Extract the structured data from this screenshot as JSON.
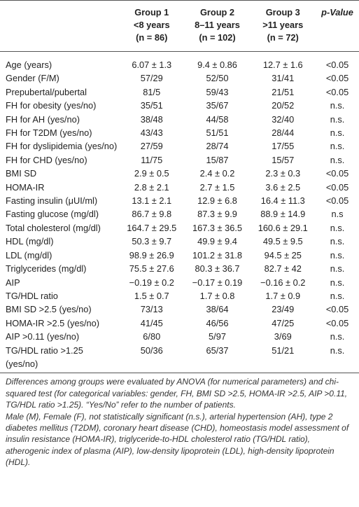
{
  "table": {
    "header": [
      {
        "lines": [
          "",
          "",
          " "
        ]
      },
      {
        "lines": [
          "Group 1",
          "<8 years",
          "(n = 86)"
        ]
      },
      {
        "lines": [
          "Group 2",
          "8–11 years",
          "(n = 102)"
        ]
      },
      {
        "lines": [
          "Group 3",
          ">11 years",
          "(n = 72)"
        ]
      },
      {
        "lines": [
          "p-Value"
        ]
      }
    ],
    "rows": [
      [
        "Age (years)",
        "6.07 ± 1.3",
        "9.4 ± 0.86",
        "12.7 ± 1.6",
        "<0.05"
      ],
      [
        "Gender (F/M)",
        "57/29",
        "52/50",
        "31/41",
        "<0.05"
      ],
      [
        "Prepubertal/pubertal",
        "81/5",
        "59/43",
        "21/51",
        "<0.05"
      ],
      [
        "FH for obesity (yes/no)",
        "35/51",
        "35/67",
        "20/52",
        "n.s."
      ],
      [
        "FH for AH (yes/no)",
        "38/48",
        "44/58",
        "32/40",
        "n.s."
      ],
      [
        "FH for T2DM (yes/no)",
        "43/43",
        "51/51",
        "28/44",
        "n.s."
      ],
      [
        "FH for dyslipidemia (yes/no)",
        "27/59",
        "28/74",
        "17/55",
        "n.s."
      ],
      [
        "FH for CHD (yes/no)",
        "11/75",
        "15/87",
        "15/57",
        "n.s."
      ],
      [
        "BMI SD",
        "2.9 ± 0.5",
        "2.4 ± 0.2",
        "2.3 ± 0.3",
        "<0.05"
      ],
      [
        "HOMA-IR",
        "2.8 ± 2.1",
        "2.7 ± 1.5",
        "3.6 ± 2.5",
        "<0.05"
      ],
      [
        "Fasting insulin (μUI/ml)",
        "13.1 ± 2.1",
        "12.9 ± 6.8",
        "16.4 ± 11.3",
        "<0.05"
      ],
      [
        "Fasting glucose (mg/dl)",
        "86.7 ± 9.8",
        "87.3 ± 9.9",
        "88.9 ± 14.9",
        "n.s"
      ],
      [
        "Total cholesterol (mg/dl)",
        "164.7 ± 29.5",
        "167.3 ± 36.5",
        "160.6 ± 29.1",
        "n.s."
      ],
      [
        "HDL (mg/dl)",
        "50.3 ± 9.7",
        "49.9 ± 9.4",
        "49.5 ± 9.5",
        "n.s."
      ],
      [
        "LDL (mg/dl)",
        "98.9 ± 26.9",
        "101.2 ± 31.8",
        "94.5 ± 25",
        "n.s."
      ],
      [
        "Triglycerides (mg/dl)",
        "75.5 ± 27.6",
        "80.3 ± 36.7",
        "82.7 ± 42",
        "n.s."
      ],
      [
        "AIP",
        "−0.19 ± 0.2",
        "−0.17 ± 0.19",
        "−0.16 ± 0.2",
        "n.s."
      ],
      [
        "TG/HDL ratio",
        "1.5 ± 0.7",
        "1.7 ± 0.8",
        "1.7 ± 0.9",
        "n.s."
      ],
      [
        "BMI SD >2.5 (yes/no)",
        "73/13",
        "38/64",
        "23/49",
        "<0.05"
      ],
      [
        "HOMA-IR >2.5 (yes/no)",
        "41/45",
        "46/56",
        "47/25",
        "<0.05"
      ],
      [
        "AIP >0.11 (yes/no)",
        "6/80",
        "5/97",
        "3/69",
        "n.s."
      ],
      [
        "TG/HDL ratio >1.25 (yes/no)",
        "50/36",
        "65/37",
        "51/21",
        "n.s."
      ]
    ]
  },
  "notes": [
    "Differences among groups were evaluated by ANOVA (for numerical parameters) and chi-squared test (for categorical variables: gender, FH, BMI SD >2.5, HOMA-IR >2.5, AIP >0.11, TG/HDL ratio >1.25). “Yes/No” refer to the number of patients.",
    "Male (M), Female (F), not statistically significant (n.s.), arterial hypertension (AH), type 2 diabetes mellitus (T2DM), coronary heart disease (CHD), homeostasis model assessment of insulin resistance (HOMA-IR), triglyceride-to-HDL cholesterol ratio (TG/HDL ratio), atherogenic index of plasma (AIP), low-density lipoprotein (LDL), high-density lipoprotein (HDL)."
  ]
}
